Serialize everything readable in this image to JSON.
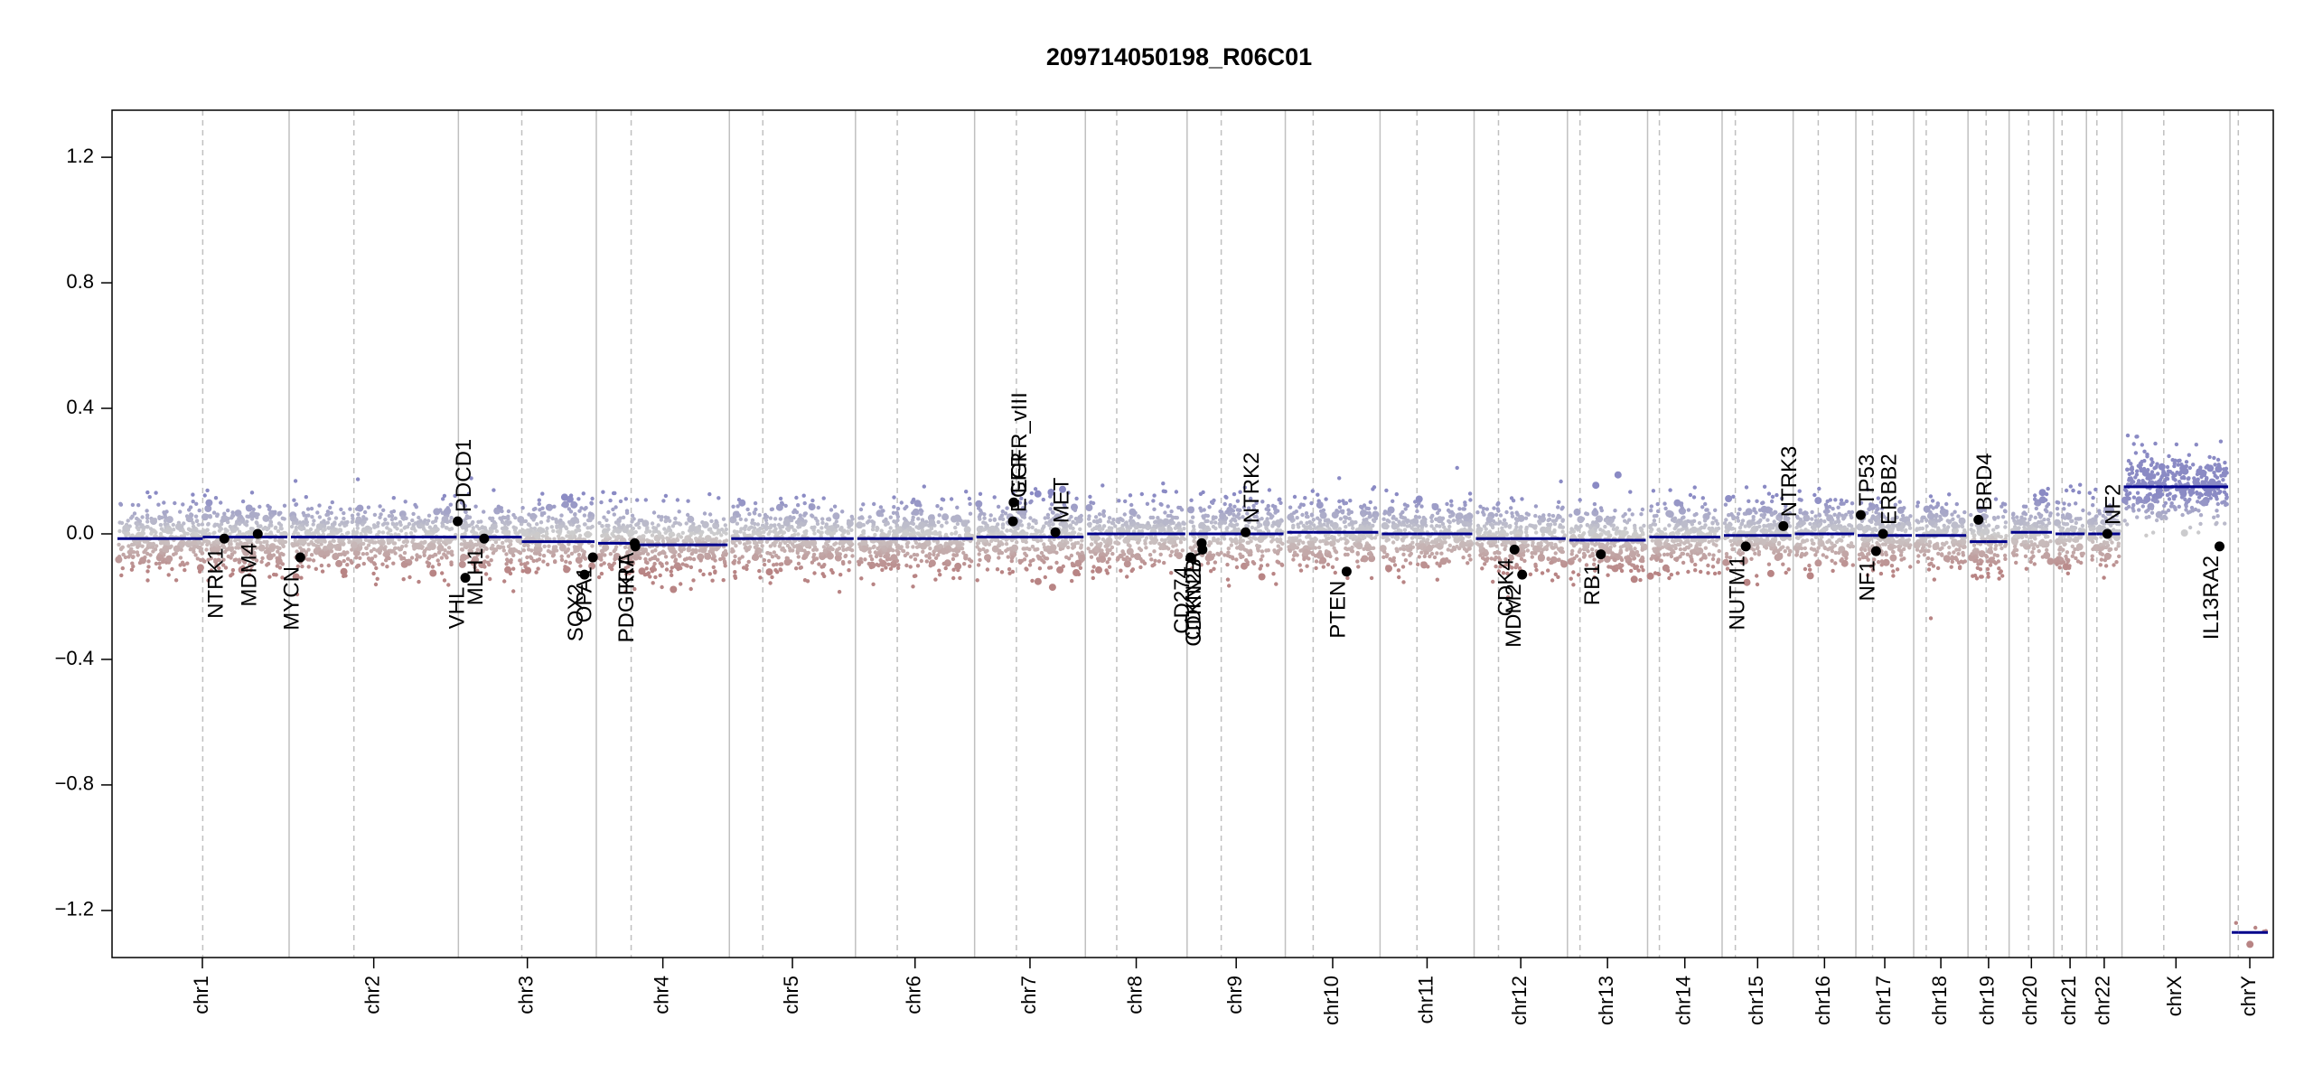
{
  "chart_data": {
    "type": "scatter",
    "title": "209714050198_R06C01",
    "xlabel": "",
    "ylabel": "",
    "ylim": [
      -1.35,
      1.35
    ],
    "y_ticks": [
      "1.2",
      "0.8",
      "0.4",
      "0.0",
      "−0.4",
      "−0.8",
      "−1.2"
    ],
    "y_tick_values": [
      1.2,
      0.8,
      0.4,
      0.0,
      -0.4,
      -0.8,
      -1.2
    ],
    "grid": false,
    "colors": {
      "gain": "#8a8ac4",
      "loss": "#b88484",
      "neutral": "#c8c8c8",
      "segment": "#00008b",
      "gene_dot": "#000000",
      "chrom_line": "#c0c0c0"
    },
    "chromosomes": [
      {
        "name": "chr1",
        "len": 249,
        "cen": 125,
        "seg": [
          -0.015,
          -0.01
        ]
      },
      {
        "name": "chr2",
        "len": 243,
        "cen": 93,
        "seg": [
          -0.01,
          -0.01
        ]
      },
      {
        "name": "chr3",
        "len": 198,
        "cen": 91,
        "seg": [
          -0.01,
          -0.025
        ]
      },
      {
        "name": "chr4",
        "len": 191,
        "cen": 50,
        "seg": [
          -0.03,
          -0.035
        ]
      },
      {
        "name": "chr5",
        "len": 181,
        "cen": 48,
        "seg": [
          -0.015,
          -0.015
        ]
      },
      {
        "name": "chr6",
        "len": 171,
        "cen": 60,
        "seg": [
          -0.015,
          -0.015
        ]
      },
      {
        "name": "chr7",
        "len": 159,
        "cen": 60,
        "seg": [
          -0.01,
          -0.01
        ]
      },
      {
        "name": "chr8",
        "len": 146,
        "cen": 45,
        "seg": [
          0.0,
          0.0
        ]
      },
      {
        "name": "chr9",
        "len": 141,
        "cen": 49,
        "seg": [
          0.0,
          0.0
        ]
      },
      {
        "name": "chr10",
        "len": 136,
        "cen": 40,
        "seg": [
          0.005,
          0.005
        ]
      },
      {
        "name": "chr11",
        "len": 135,
        "cen": 53,
        "seg": [
          0.0,
          0.0
        ]
      },
      {
        "name": "chr12",
        "len": 134,
        "cen": 35,
        "seg": [
          -0.015,
          -0.015
        ]
      },
      {
        "name": "chr13",
        "len": 115,
        "cen": 18,
        "seg": [
          -0.02,
          -0.02
        ]
      },
      {
        "name": "chr14",
        "len": 107,
        "cen": 17,
        "seg": [
          -0.01,
          -0.01
        ]
      },
      {
        "name": "chr15",
        "len": 102,
        "cen": 19,
        "seg": [
          -0.005,
          -0.005
        ]
      },
      {
        "name": "chr16",
        "len": 90,
        "cen": 36,
        "seg": [
          0.0,
          0.0
        ]
      },
      {
        "name": "chr17",
        "len": 83,
        "cen": 24,
        "seg": [
          -0.005,
          -0.005
        ]
      },
      {
        "name": "chr18",
        "len": 78,
        "cen": 18,
        "seg": [
          -0.005,
          -0.005
        ]
      },
      {
        "name": "chr19",
        "len": 59,
        "cen": 26,
        "seg": [
          -0.025,
          -0.025
        ]
      },
      {
        "name": "chr20",
        "len": 64,
        "cen": 28,
        "seg": [
          0.005,
          0.005
        ]
      },
      {
        "name": "chr21",
        "len": 47,
        "cen": 12,
        "seg": [
          0.0,
          0.0
        ]
      },
      {
        "name": "chr22",
        "len": 51,
        "cen": 15,
        "seg": [
          0.0,
          0.0
        ]
      },
      {
        "name": "chrX",
        "len": 155,
        "cen": 60,
        "seg": [
          0.15,
          0.15
        ]
      },
      {
        "name": "chrY",
        "len": 57,
        "cen": 12,
        "seg": [
          -1.27,
          -1.27
        ]
      }
    ],
    "genes": [
      {
        "name": "NTRK1",
        "chr": "chr1",
        "pos": 156,
        "y": -0.015,
        "label": "below"
      },
      {
        "name": "MDM4",
        "chr": "chr1",
        "pos": 204,
        "y": 0.0,
        "label": "below"
      },
      {
        "name": "MYCN",
        "chr": "chr2",
        "pos": 16,
        "y": -0.075,
        "label": "below"
      },
      {
        "name": "PDCD1",
        "chr": "chr2",
        "pos": 242,
        "y": 0.04,
        "label": "above"
      },
      {
        "name": "VHL",
        "chr": "chr3",
        "pos": 10,
        "y": -0.14,
        "label": "below"
      },
      {
        "name": "MLH1",
        "chr": "chr3",
        "pos": 37,
        "y": -0.015,
        "label": "below"
      },
      {
        "name": "SOX2",
        "chr": "chr3",
        "pos": 181,
        "y": -0.13,
        "label": "below"
      },
      {
        "name": "OPA1",
        "chr": "chr3",
        "pos": 193,
        "y": -0.075,
        "label": "below"
      },
      {
        "name": "PDGFRA",
        "chr": "chr4",
        "pos": 55,
        "y": -0.03,
        "label": "below"
      },
      {
        "name": "KIT",
        "chr": "chr4",
        "pos": 56,
        "y": -0.04,
        "label": "below"
      },
      {
        "name": "EGFR",
        "chr": "chr7",
        "pos": 55,
        "y": 0.04,
        "label": "above"
      },
      {
        "name": "EGFR_vIII",
        "chr": "chr7",
        "pos": 56,
        "y": 0.1,
        "label": "above"
      },
      {
        "name": "MET",
        "chr": "chr7",
        "pos": 116,
        "y": 0.005,
        "label": "above"
      },
      {
        "name": "CD274",
        "chr": "chr9",
        "pos": 5,
        "y": -0.075,
        "label": "below"
      },
      {
        "name": "CDKN2A",
        "chr": "chr9",
        "pos": 21,
        "y": -0.03,
        "label": "below"
      },
      {
        "name": "CDKN2B",
        "chr": "chr9",
        "pos": 22,
        "y": -0.05,
        "label": "below"
      },
      {
        "name": "NTRK2",
        "chr": "chr9",
        "pos": 84,
        "y": 0.005,
        "label": "above"
      },
      {
        "name": "PTEN",
        "chr": "chr10",
        "pos": 88,
        "y": -0.12,
        "label": "below"
      },
      {
        "name": "CDK4",
        "chr": "chr12",
        "pos": 58,
        "y": -0.05,
        "label": "below"
      },
      {
        "name": "MDM2",
        "chr": "chr12",
        "pos": 69,
        "y": -0.13,
        "label": "below"
      },
      {
        "name": "RB1",
        "chr": "chr13",
        "pos": 48,
        "y": -0.065,
        "label": "below"
      },
      {
        "name": "NUTM1",
        "chr": "chr15",
        "pos": 34,
        "y": -0.04,
        "label": "below"
      },
      {
        "name": "NTRK3",
        "chr": "chr15",
        "pos": 88,
        "y": 0.025,
        "label": "above"
      },
      {
        "name": "TP53",
        "chr": "chr17",
        "pos": 7,
        "y": 0.06,
        "label": "above"
      },
      {
        "name": "NF1",
        "chr": "chr17",
        "pos": 29,
        "y": -0.055,
        "label": "below"
      },
      {
        "name": "ERBB2",
        "chr": "chr17",
        "pos": 39,
        "y": 0.0,
        "label": "above"
      },
      {
        "name": "BRD4",
        "chr": "chr19",
        "pos": 15,
        "y": 0.045,
        "label": "above"
      },
      {
        "name": "NF2",
        "chr": "chr22",
        "pos": 30,
        "y": 0.0,
        "label": "above"
      },
      {
        "name": "IL13RA2",
        "chr": "chrX",
        "pos": 140,
        "y": -0.04,
        "label": "below"
      }
    ]
  }
}
